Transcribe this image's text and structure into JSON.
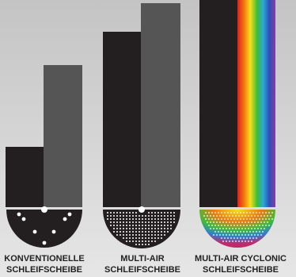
{
  "labels": [
    {
      "line1": "KONVENTIONELLE",
      "line2": "SCHLEIFSCHEIBE"
    },
    {
      "line1": "MULTI-AIR",
      "line2": "SCHLEIFSCHEIBE"
    },
    {
      "line1": "MULTI-AIR CYCLONIC",
      "line2": "SCHLEIFSCHEIBE"
    }
  ]
}
